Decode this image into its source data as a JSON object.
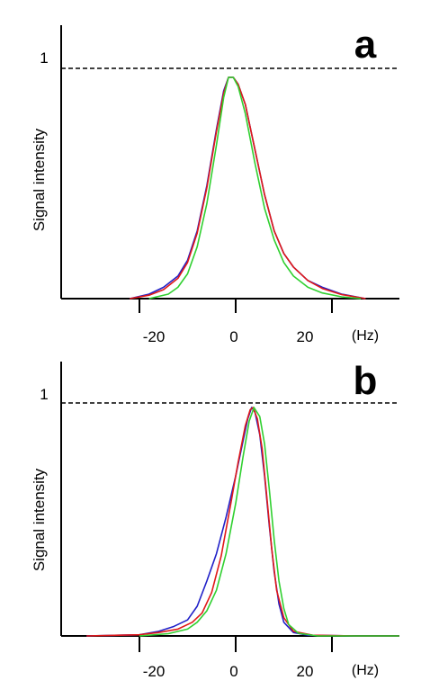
{
  "chart_data": [
    {
      "type": "line",
      "panel_label": "a",
      "ylabel": "Signal intensity",
      "x_unit": "(Hz)",
      "xlim": [
        -38,
        37
      ],
      "ylim": [
        0,
        1.08
      ],
      "xticks": [
        -20,
        0,
        20
      ],
      "xtick_labels": [
        "-20",
        "0",
        "20"
      ],
      "ytick_label": "1",
      "reference_line": {
        "y": 1,
        "style": "dashed"
      },
      "grid": false,
      "series": [
        {
          "color": "#2020c8",
          "points": [
            [
              -22,
              0
            ],
            [
              -18,
              0.02
            ],
            [
              -15,
              0.05
            ],
            [
              -12,
              0.1
            ],
            [
              -10,
              0.17
            ],
            [
              -8,
              0.3
            ],
            [
              -6,
              0.5
            ],
            [
              -4,
              0.75
            ],
            [
              -2.5,
              0.92
            ],
            [
              -1.5,
              0.98
            ],
            [
              -0.5,
              0.98
            ],
            [
              0.5,
              0.95
            ],
            [
              2,
              0.86
            ],
            [
              4,
              0.66
            ],
            [
              6,
              0.46
            ],
            [
              8,
              0.3
            ],
            [
              10,
              0.2
            ],
            [
              12,
              0.14
            ],
            [
              15,
              0.08
            ],
            [
              18,
              0.05
            ],
            [
              22,
              0.02
            ],
            [
              27,
              0
            ]
          ]
        },
        {
          "color": "#e01818",
          "points": [
            [
              -22,
              0
            ],
            [
              -18,
              0.015
            ],
            [
              -15,
              0.04
            ],
            [
              -12,
              0.09
            ],
            [
              -10,
              0.16
            ],
            [
              -8,
              0.29
            ],
            [
              -6,
              0.49
            ],
            [
              -4,
              0.74
            ],
            [
              -2.5,
              0.91
            ],
            [
              -1.5,
              0.98
            ],
            [
              -0.5,
              0.98
            ],
            [
              0.5,
              0.95
            ],
            [
              2,
              0.86
            ],
            [
              4,
              0.66
            ],
            [
              6,
              0.46
            ],
            [
              8,
              0.3
            ],
            [
              10,
              0.2
            ],
            [
              12,
              0.14
            ],
            [
              15,
              0.08
            ],
            [
              18,
              0.045
            ],
            [
              22,
              0.018
            ],
            [
              27,
              0
            ]
          ]
        },
        {
          "color": "#30d030",
          "points": [
            [
              -18,
              0
            ],
            [
              -14,
              0.02
            ],
            [
              -12,
              0.05
            ],
            [
              -10,
              0.11
            ],
            [
              -8,
              0.23
            ],
            [
              -6,
              0.42
            ],
            [
              -4,
              0.68
            ],
            [
              -2.5,
              0.89
            ],
            [
              -1.5,
              0.98
            ],
            [
              -0.5,
              0.98
            ],
            [
              0.5,
              0.94
            ],
            [
              2,
              0.82
            ],
            [
              4,
              0.6
            ],
            [
              6,
              0.4
            ],
            [
              8,
              0.26
            ],
            [
              10,
              0.16
            ],
            [
              12,
              0.1
            ],
            [
              15,
              0.05
            ],
            [
              18,
              0.025
            ],
            [
              22,
              0.008
            ],
            [
              26,
              0
            ]
          ]
        }
      ]
    },
    {
      "type": "line",
      "panel_label": "b",
      "ylabel": "Signal intensity",
      "x_unit": "(Hz)",
      "xlim": [
        -38,
        37
      ],
      "ylim": [
        0,
        1.08
      ],
      "xticks": [
        -20,
        0,
        20
      ],
      "xtick_labels": [
        "-20",
        "0",
        "20"
      ],
      "ytick_label": "1",
      "reference_line": {
        "y": 1,
        "style": "dashed"
      },
      "grid": false,
      "series": [
        {
          "color": "#2020c8",
          "points": [
            [
              -31,
              0
            ],
            [
              -20,
              0.005
            ],
            [
              -16,
              0.02
            ],
            [
              -13,
              0.04
            ],
            [
              -10,
              0.07
            ],
            [
              -8,
              0.13
            ],
            [
              -6,
              0.24
            ],
            [
              -4,
              0.36
            ],
            [
              -2,
              0.52
            ],
            [
              0,
              0.7
            ],
            [
              1.5,
              0.85
            ],
            [
              2.5,
              0.95
            ],
            [
              3.3,
              1.0
            ],
            [
              4,
              0.98
            ],
            [
              5,
              0.88
            ],
            [
              6,
              0.7
            ],
            [
              7,
              0.48
            ],
            [
              8,
              0.28
            ],
            [
              9,
              0.14
            ],
            [
              10,
              0.06
            ],
            [
              12,
              0.015
            ],
            [
              15,
              0.003
            ],
            [
              25,
              0
            ],
            [
              34,
              0
            ]
          ]
        },
        {
          "color": "#e01818",
          "points": [
            [
              -31,
              0
            ],
            [
              -20,
              0.005
            ],
            [
              -16,
              0.015
            ],
            [
              -12,
              0.03
            ],
            [
              -9,
              0.06
            ],
            [
              -7,
              0.1
            ],
            [
              -5,
              0.19
            ],
            [
              -3,
              0.35
            ],
            [
              -1,
              0.58
            ],
            [
              0.5,
              0.76
            ],
            [
              2,
              0.92
            ],
            [
              3,
              0.99
            ],
            [
              3.6,
              1.0
            ],
            [
              4.5,
              0.95
            ],
            [
              5.5,
              0.82
            ],
            [
              6.5,
              0.6
            ],
            [
              7.5,
              0.38
            ],
            [
              8.5,
              0.2
            ],
            [
              10,
              0.08
            ],
            [
              12,
              0.02
            ],
            [
              16,
              0.003
            ],
            [
              25,
              0
            ],
            [
              34,
              0
            ]
          ]
        },
        {
          "color": "#30d030",
          "points": [
            [
              -20,
              0
            ],
            [
              -14,
              0.01
            ],
            [
              -10,
              0.03
            ],
            [
              -8,
              0.06
            ],
            [
              -6,
              0.11
            ],
            [
              -4,
              0.2
            ],
            [
              -2,
              0.36
            ],
            [
              0,
              0.58
            ],
            [
              1.5,
              0.78
            ],
            [
              2.8,
              0.94
            ],
            [
              3.8,
              1.0
            ],
            [
              5,
              0.96
            ],
            [
              6,
              0.84
            ],
            [
              7,
              0.64
            ],
            [
              8,
              0.42
            ],
            [
              9,
              0.24
            ],
            [
              10,
              0.12
            ],
            [
              11,
              0.05
            ],
            [
              13,
              0.012
            ],
            [
              17,
              0
            ],
            [
              34,
              0
            ]
          ]
        }
      ]
    }
  ]
}
